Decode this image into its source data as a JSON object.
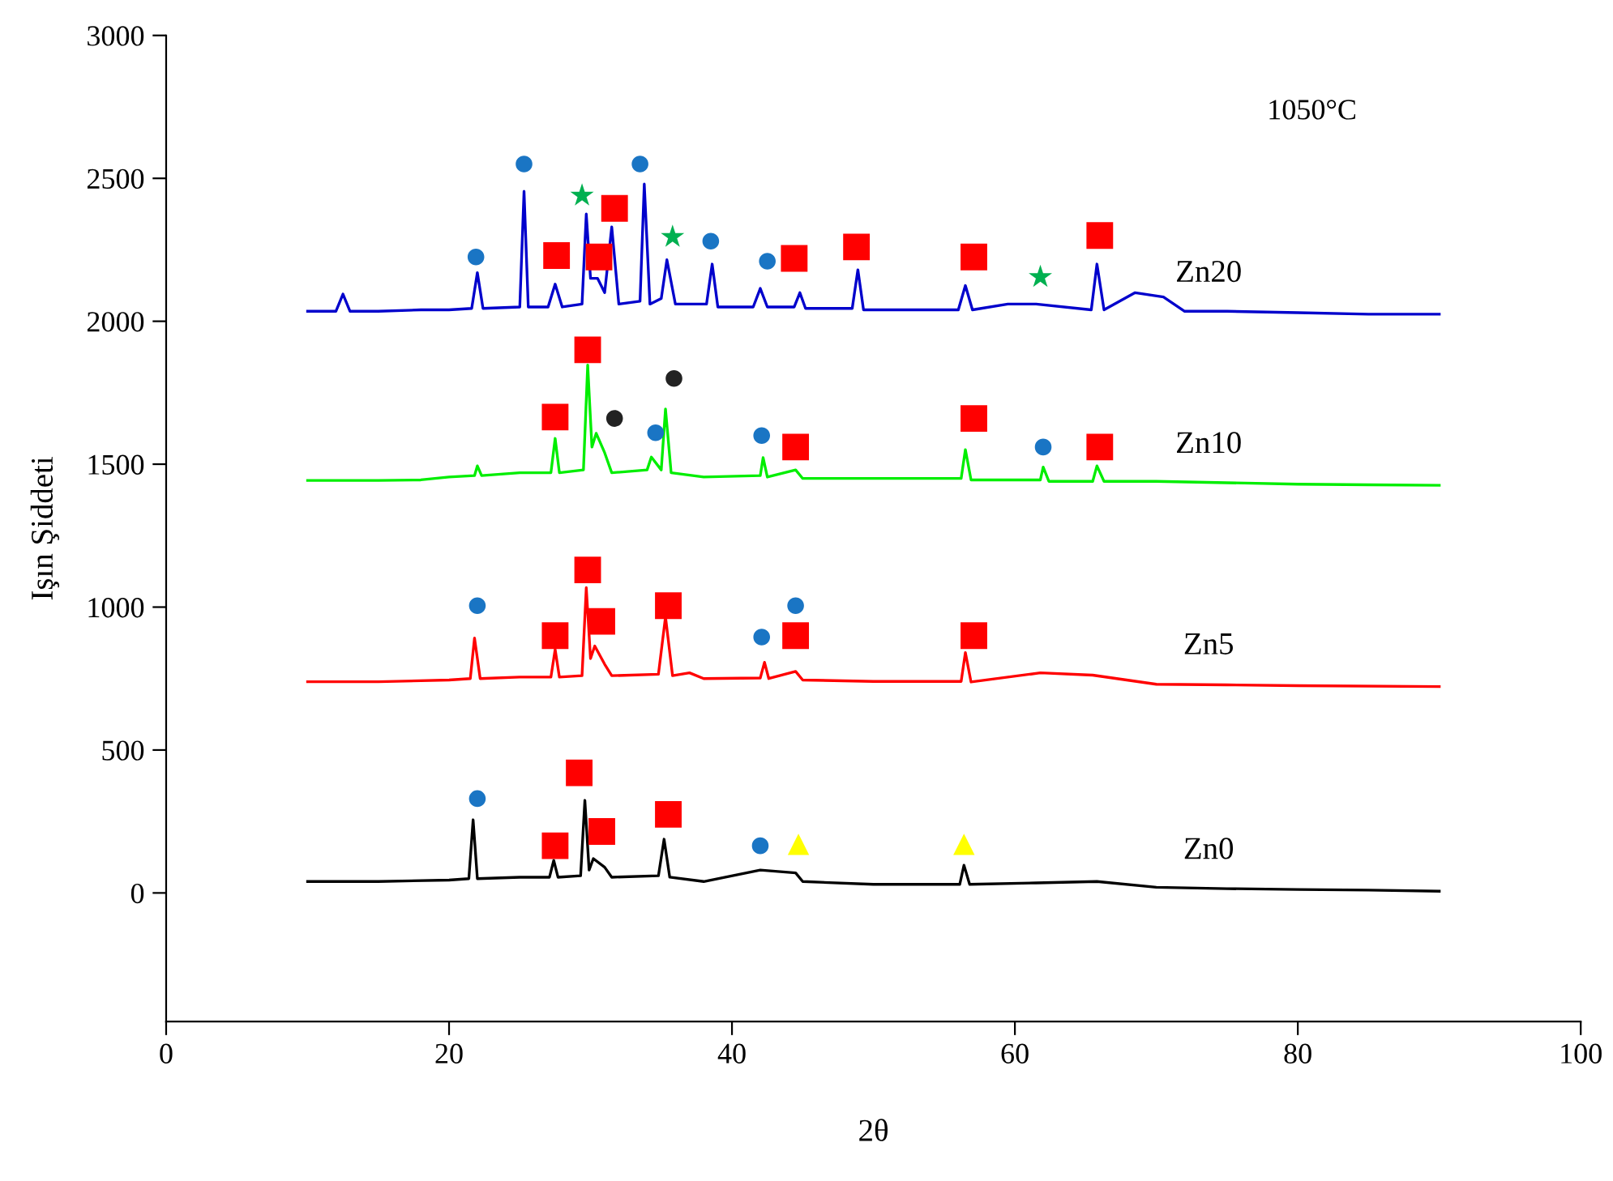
{
  "chart_data": {
    "type": "line",
    "xlabel": "2θ",
    "ylabel": "Işın Şiddeti",
    "annotations": [
      "1050°C"
    ],
    "xlim": [
      0,
      100
    ],
    "xticks": [
      0,
      20,
      40,
      60,
      80,
      100
    ],
    "ylim": [
      -450,
      3000
    ],
    "yticks": [
      0,
      500,
      1000,
      1500,
      2000,
      2500,
      3000
    ],
    "grid": false,
    "legend": false,
    "line_style": "solid",
    "series": [
      {
        "name": "Zn20",
        "color": "#0000cc",
        "x": [
          10,
          12,
          12.5,
          13,
          15,
          18,
          20,
          21.6,
          22,
          22.4,
          25,
          25.3,
          25.6,
          27,
          27.5,
          28,
          29.4,
          29.7,
          30,
          30.5,
          31,
          31.5,
          32,
          33.5,
          33.8,
          34.2,
          35,
          35.4,
          36,
          38.2,
          38.6,
          39,
          41.5,
          42,
          42.5,
          44.4,
          44.8,
          45.2,
          48.5,
          48.9,
          49.3,
          52,
          56,
          56.5,
          57,
          59.5,
          61.5,
          65.4,
          65.8,
          66.3,
          68.5,
          70.5,
          72,
          75,
          80,
          85,
          90
        ],
        "values": [
          2035,
          2035,
          2095,
          2035,
          2035,
          2040,
          2040,
          2045,
          2170,
          2045,
          2050,
          2455,
          2050,
          2050,
          2130,
          2050,
          2060,
          2375,
          2150,
          2150,
          2100,
          2330,
          2060,
          2070,
          2480,
          2060,
          2080,
          2215,
          2060,
          2060,
          2200,
          2050,
          2050,
          2115,
          2050,
          2050,
          2100,
          2045,
          2045,
          2180,
          2040,
          2040,
          2040,
          2125,
          2040,
          2060,
          2060,
          2040,
          2200,
          2040,
          2100,
          2085,
          2035,
          2035,
          2030,
          2025,
          2025
        ]
      },
      {
        "name": "Zn10",
        "color": "#00ee00",
        "x": [
          10,
          15,
          18,
          20,
          21.8,
          22,
          22.3,
          25,
          27.2,
          27.5,
          27.8,
          29.5,
          29.8,
          30.1,
          30.4,
          31,
          31.5,
          34,
          34.3,
          35,
          35.3,
          35.7,
          38,
          42,
          42.2,
          42.5,
          44.5,
          45,
          50,
          56.2,
          56.5,
          56.9,
          61.8,
          62,
          62.4,
          65.5,
          65.8,
          66.3,
          70,
          75,
          80,
          85,
          90
        ],
        "values": [
          1443,
          1443,
          1445,
          1455,
          1460,
          1494,
          1460,
          1470,
          1470,
          1590,
          1470,
          1480,
          1847,
          1560,
          1608,
          1540,
          1470,
          1480,
          1525,
          1480,
          1693,
          1470,
          1455,
          1460,
          1523,
          1455,
          1480,
          1450,
          1450,
          1450,
          1551,
          1445,
          1445,
          1490,
          1440,
          1440,
          1494,
          1440,
          1440,
          1435,
          1430,
          1428,
          1426
        ]
      },
      {
        "name": "Zn5",
        "color": "#ff0000",
        "x": [
          10,
          15,
          20,
          21.5,
          21.8,
          22.2,
          25,
          27.2,
          27.5,
          27.8,
          29.4,
          29.7,
          30,
          30.3,
          31,
          31.5,
          34.8,
          35.3,
          35.8,
          37,
          38,
          42,
          42.3,
          42.6,
          44.5,
          45,
          50,
          56.2,
          56.5,
          56.9,
          61.8,
          65.5,
          70,
          75,
          80,
          90
        ],
        "values": [
          739,
          739,
          745,
          750,
          892,
          750,
          755,
          755,
          852,
          755,
          760,
          1068,
          820,
          864,
          800,
          760,
          765,
          966,
          760,
          770,
          750,
          752,
          807,
          750,
          775,
          745,
          740,
          740,
          841,
          738,
          770,
          762,
          730,
          728,
          725,
          722
        ]
      },
      {
        "name": "Zn0",
        "color": "#000000",
        "x": [
          10,
          15,
          20,
          21.4,
          21.7,
          22,
          25,
          27.1,
          27.4,
          27.7,
          29.3,
          29.6,
          29.9,
          30.2,
          31,
          31.5,
          34.8,
          35.2,
          35.6,
          38,
          42,
          44.5,
          45,
          50,
          56.1,
          56.4,
          56.8,
          61.5,
          65.8,
          70,
          75,
          80,
          85,
          90
        ],
        "values": [
          40,
          40,
          45,
          50,
          256,
          50,
          55,
          55,
          114,
          55,
          60,
          324,
          80,
          120,
          90,
          55,
          60,
          188,
          55,
          40,
          80,
          70,
          40,
          30,
          30,
          97,
          30,
          35,
          40,
          20,
          15,
          12,
          10,
          6
        ]
      },
      {
        "type": "scatter",
        "marker": "square",
        "color": "#ff0000",
        "x": [
          27.6,
          30.6,
          31.7,
          44.4,
          48.8,
          57.1,
          66.0,
          27.5,
          29.8,
          44.5,
          57.1,
          66.0,
          27.5,
          29.8,
          30.8,
          35.5,
          44.5,
          57.1,
          27.5,
          29.2,
          30.8,
          35.5
        ],
        "values": [
          2230,
          2225,
          2395,
          2220,
          2260,
          2225,
          2300,
          1665,
          1900,
          1560,
          1660,
          1560,
          900,
          1130,
          950,
          1005,
          900,
          900,
          165,
          420,
          215,
          275
        ]
      },
      {
        "type": "scatter",
        "marker": "circle",
        "color": "#1a75c4",
        "x": [
          21.9,
          25.3,
          33.5,
          38.5,
          42.5,
          34.6,
          42.1,
          62.0,
          22.0,
          42.1,
          44.5,
          22.0,
          42.0
        ],
        "values": [
          2225,
          2550,
          2550,
          2280,
          2210,
          1610,
          1600,
          1560,
          1005,
          895,
          1005,
          330,
          165
        ]
      },
      {
        "type": "scatter",
        "marker": "star",
        "color": "#00b050",
        "x": [
          29.4,
          35.8,
          61.8
        ],
        "values": [
          2440,
          2295,
          2155
        ]
      },
      {
        "type": "scatter",
        "marker": "circle",
        "color": "#222222",
        "x": [
          31.7,
          35.9
        ],
        "values": [
          1660,
          1800
        ]
      },
      {
        "type": "scatter",
        "marker": "triangle",
        "color": "#ffff00",
        "x": [
          44.7,
          56.4
        ],
        "values": [
          170,
          170
        ]
      }
    ]
  }
}
